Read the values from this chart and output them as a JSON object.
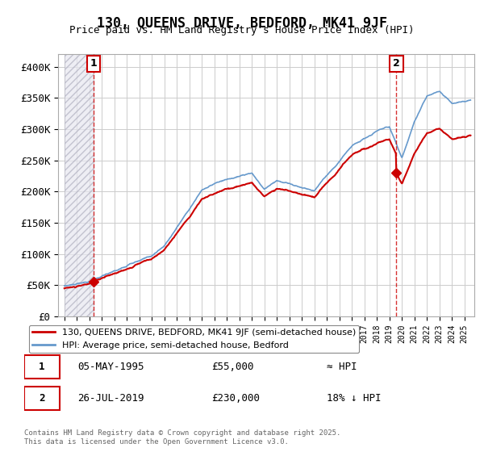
{
  "title": "130, QUEENS DRIVE, BEDFORD, MK41 9JF",
  "subtitle": "Price paid vs. HM Land Registry's House Price Index (HPI)",
  "ylabel_ticks": [
    "£0",
    "£50K",
    "£100K",
    "£150K",
    "£200K",
    "£250K",
    "£300K",
    "£350K",
    "£400K"
  ],
  "ytick_values": [
    0,
    50000,
    100000,
    150000,
    200000,
    250000,
    300000,
    350000,
    400000
  ],
  "ylim": [
    0,
    420000
  ],
  "xlim_start": 1993,
  "xlim_end": 2025.5,
  "sale_color": "#cc0000",
  "hpi_color": "#6699cc",
  "hatch_color": "#ccccdd",
  "annotation1_date": "05-MAY-1995",
  "annotation1_price": "£55,000",
  "annotation1_hpi": "≈ HPI",
  "annotation2_date": "26-JUL-2019",
  "annotation2_price": "£230,000",
  "annotation2_hpi": "18% ↓ HPI",
  "legend_label1": "130, QUEENS DRIVE, BEDFORD, MK41 9JF (semi-detached house)",
  "legend_label2": "HPI: Average price, semi-detached house, Bedford",
  "copyright_text": "Contains HM Land Registry data © Crown copyright and database right 2025.\nThis data is licensed under the Open Government Licence v3.0.",
  "marker1_x": 1995.35,
  "marker1_y": 55000,
  "marker2_x": 2019.57,
  "marker2_y": 230000,
  "vline1_x": 1995.35,
  "vline2_x": 2019.57
}
